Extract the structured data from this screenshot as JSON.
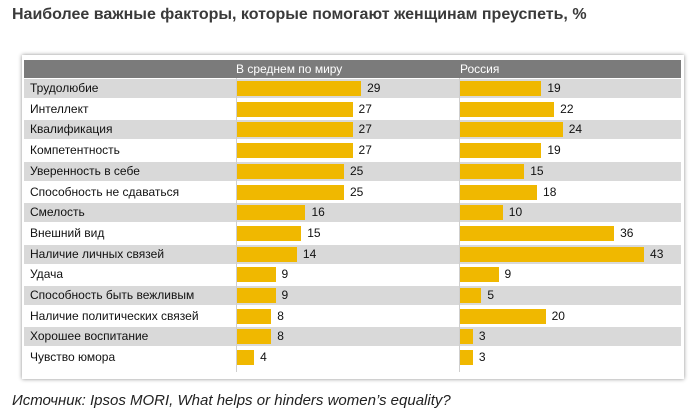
{
  "title": "Наиболее важные факторы, которые помогают женщинам преуспеть, %",
  "source": "Источник: Ipsos MORI, What helps or hinders women’s equality?",
  "colors": {
    "bar": "#f0b800",
    "header": "#7b7b7b",
    "row_even": "#d9d9d9",
    "row_odd": "#ffffff"
  },
  "chart_data": {
    "type": "bar",
    "orientation": "horizontal",
    "title": "Наиболее важные факторы, которые помогают женщинам преуспеть, %",
    "categories": [
      "Трудолюбие",
      "Интеллект",
      "Квалификация",
      "Компетентность",
      "Уверенность в себе",
      "Способность не сдаваться",
      "Смелость",
      "Внешний вид",
      "Наличие личных связей",
      "Удача",
      "Способность быть вежливым",
      "Наличие политических связей",
      "Хорошее воспитание",
      "Чувство юмора"
    ],
    "series": [
      {
        "name": "В среднем по миру",
        "values": [
          29,
          27,
          27,
          27,
          25,
          25,
          16,
          15,
          14,
          9,
          9,
          8,
          8,
          4
        ]
      },
      {
        "name": "Россия",
        "values": [
          19,
          22,
          24,
          19,
          15,
          18,
          10,
          36,
          43,
          9,
          5,
          20,
          3,
          3
        ]
      }
    ],
    "data_labels": true,
    "xlim": [
      0,
      43
    ]
  }
}
